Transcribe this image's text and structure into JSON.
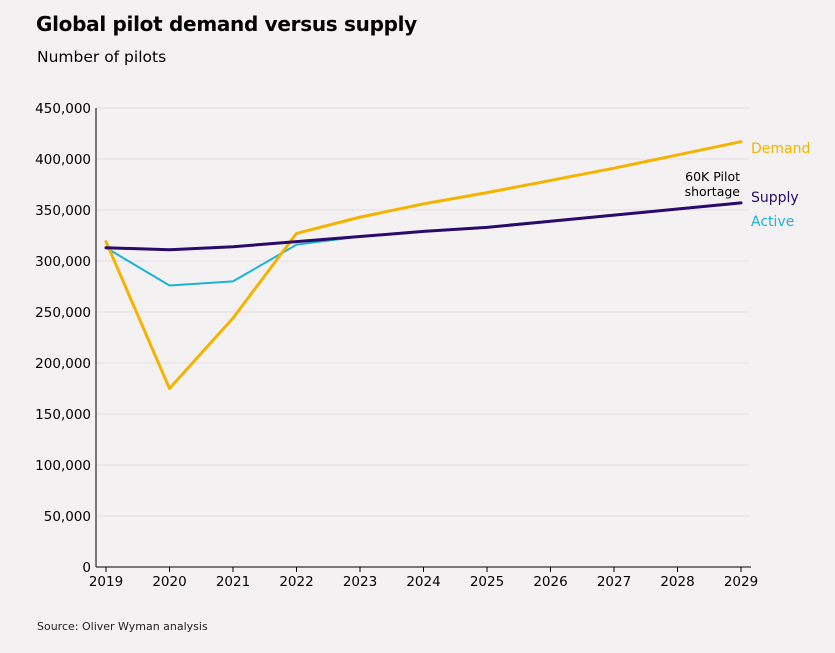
{
  "title": "Global pilot demand versus supply",
  "subtitle": "Number of pilots",
  "source": "Source: Oliver Wyman analysis",
  "chart_data": {
    "type": "line",
    "title": "Global pilot demand versus supply",
    "ylabel": "Number of pilots",
    "xlabel": "",
    "x": [
      2019,
      2020,
      2021,
      2022,
      2023,
      2024,
      2025,
      2026,
      2027,
      2028,
      2029
    ],
    "ylim": [
      0,
      450000
    ],
    "yticks": [
      0,
      50000,
      100000,
      150000,
      200000,
      250000,
      300000,
      350000,
      400000,
      450000
    ],
    "ytick_labels": [
      "0",
      "50,000",
      "100,000",
      "150,000",
      "200,000",
      "250,000",
      "300,000",
      "350,000",
      "400,000",
      "450,000"
    ],
    "xtick_labels": [
      "2019",
      "2020",
      "2021",
      "2022",
      "2023",
      "2024",
      "2025",
      "2026",
      "2027",
      "2028",
      "2029"
    ],
    "grid": true,
    "legend": "direct labels at right end of lines",
    "series": [
      {
        "name": "Demand",
        "color": "#f5b300",
        "x": [
          2019,
          2020,
          2021,
          2022,
          2023,
          2024,
          2025,
          2026,
          2027,
          2028,
          2029
        ],
        "values": [
          319000,
          175000,
          244000,
          327000,
          343000,
          356000,
          367000,
          379000,
          391000,
          404000,
          417000
        ]
      },
      {
        "name": "Supply",
        "color": "#2a0a6b",
        "x": [
          2019,
          2020,
          2021,
          2022,
          2023,
          2024,
          2025,
          2026,
          2027,
          2028,
          2029
        ],
        "values": [
          313000,
          311000,
          314000,
          319000,
          324000,
          329000,
          333000,
          339000,
          345000,
          351000,
          357000
        ]
      },
      {
        "name": "Active",
        "color": "#1bb2d8",
        "x": [
          2019,
          2020,
          2021,
          2022,
          2023
        ],
        "values": [
          313000,
          276000,
          280000,
          316000,
          324000
        ]
      }
    ],
    "annotations": [
      {
        "text_lines": [
          "60K Pilot",
          "shortage"
        ],
        "x": 2029
      }
    ]
  }
}
